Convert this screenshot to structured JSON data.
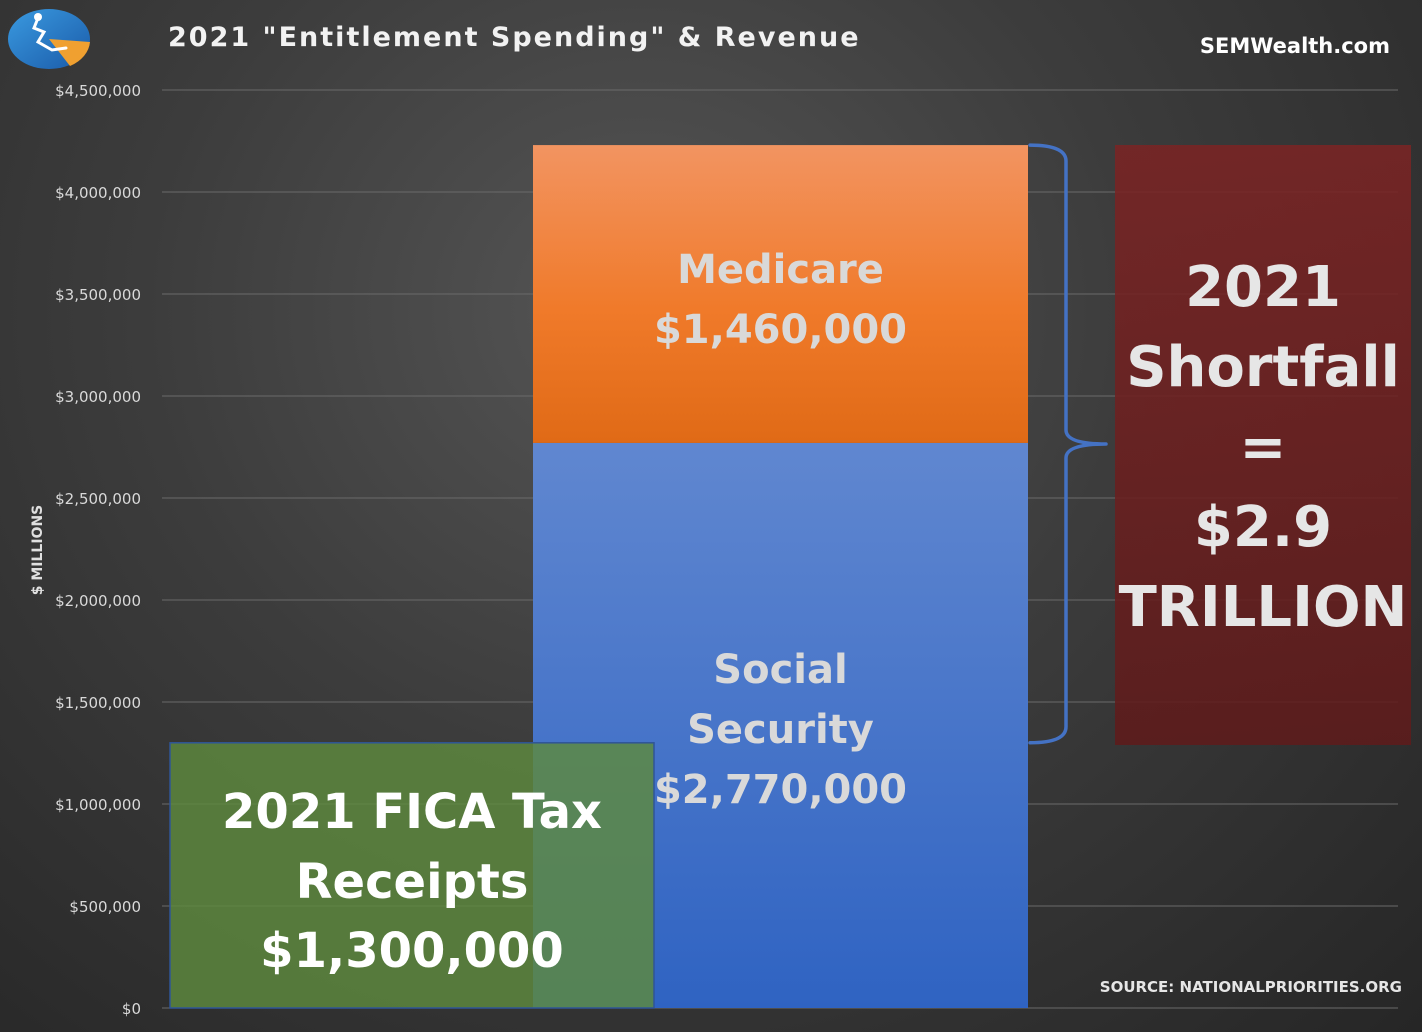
{
  "header": {
    "title": "2021 \"Entitlement Spending\" & Revenue",
    "brand": "SEMWealth.com",
    "logo_icon": "sem-logo-icon"
  },
  "footer": {
    "source": "SOURCE: NATIONALPRIORITIES.ORG"
  },
  "chart_data": {
    "type": "bar",
    "title": "2021 \"Entitlement Spending\" & Revenue",
    "xlabel": "",
    "ylabel": "$ MILLIONS",
    "ylim": [
      0,
      4500000
    ],
    "yticks": [
      0,
      500000,
      1000000,
      1500000,
      2000000,
      2500000,
      3000000,
      3500000,
      4000000,
      4500000
    ],
    "ytick_labels": [
      "$0",
      "$500,000",
      "$1,000,000",
      "$1,500,000",
      "$2,000,000",
      "$2,500,000",
      "$3,000,000",
      "$3,500,000",
      "$4,000,000",
      "$4,500,000"
    ],
    "grid": true,
    "series": [
      {
        "name": "2021 FICA Tax Receipts",
        "values": [
          1300000
        ],
        "label_lines": [
          "2021 FICA Tax",
          "Receipts",
          "$1,300,000"
        ],
        "color": "#5e8a3e"
      },
      {
        "name": "Social Security",
        "values": [
          2770000
        ],
        "label_lines": [
          "Social",
          "Security",
          "$2,770,000"
        ],
        "color": "#4472c4"
      },
      {
        "name": "Medicare",
        "values": [
          1460000
        ],
        "label_lines": [
          "Medicare",
          "$1,460,000"
        ],
        "color": "#ed7d31"
      }
    ],
    "annotation": {
      "label_lines": [
        "2021",
        "Shortfall",
        "=",
        "$2.9",
        "TRILLION"
      ],
      "value": 2900000,
      "range": [
        1300000,
        4230000
      ],
      "color": "#7a2424",
      "brace_color": "#4472c4"
    }
  }
}
